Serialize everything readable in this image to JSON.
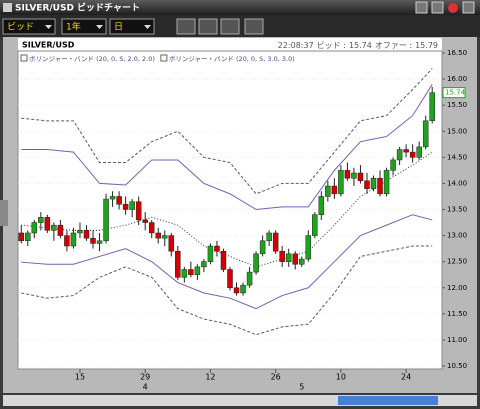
{
  "window": {
    "title": "SILVER/USD ビッドチャート",
    "toolbar": [
      "ビッド",
      "1年",
      "日"
    ]
  },
  "chart_data": {
    "type": "candlestick",
    "symbol": "SILVER/USD",
    "header": {
      "time": "22:08:37",
      "bid_label": "ビッド :",
      "bid": "15.74",
      "offer_label": "オファー :",
      "offer": "15.79"
    },
    "open": [
      13.05,
      12.9,
      13.05,
      13.25,
      13.35,
      13.1,
      13.2,
      13.0,
      12.8,
      13.05,
      13.1,
      12.95,
      12.85,
      12.9,
      13.7,
      13.75,
      13.6,
      13.5,
      13.65,
      13.3,
      13.25,
      13.05,
      12.95,
      13.0,
      12.7,
      12.2,
      12.35,
      12.25,
      12.4,
      12.5,
      12.8,
      12.7,
      12.35,
      12.0,
      11.9,
      12.05,
      12.3,
      12.65,
      12.9,
      13.05,
      12.7,
      12.5,
      12.65,
      12.45,
      12.55,
      13.0,
      13.4,
      13.75,
      13.95,
      13.8,
      14.25,
      14.1,
      14.2,
      14.05,
      13.9,
      14.1,
      13.8,
      14.25,
      14.45,
      14.65,
      14.6,
      14.5,
      14.7,
      15.2
    ],
    "high": [
      13.2,
      13.1,
      13.3,
      13.45,
      13.4,
      13.25,
      13.3,
      13.1,
      13.15,
      13.25,
      13.2,
      13.1,
      13.05,
      13.8,
      13.85,
      13.85,
      13.75,
      13.7,
      13.75,
      13.45,
      13.3,
      13.15,
      13.1,
      13.05,
      12.8,
      12.4,
      12.5,
      12.45,
      12.55,
      12.85,
      12.9,
      12.75,
      12.4,
      12.1,
      12.1,
      12.4,
      12.7,
      13.0,
      13.1,
      13.1,
      12.8,
      12.75,
      12.7,
      12.6,
      13.1,
      13.45,
      13.85,
      14.05,
      14.1,
      14.35,
      14.4,
      14.3,
      14.35,
      14.2,
      14.15,
      14.25,
      14.3,
      14.5,
      14.7,
      14.75,
      14.75,
      14.8,
      15.3,
      15.85
    ],
    "low": [
      12.85,
      12.8,
      12.95,
      13.1,
      13.05,
      12.9,
      12.95,
      12.7,
      12.75,
      12.95,
      12.9,
      12.75,
      12.7,
      12.85,
      13.55,
      13.5,
      13.4,
      13.35,
      13.2,
      13.1,
      12.95,
      12.85,
      12.8,
      12.6,
      12.15,
      12.1,
      12.2,
      12.15,
      12.3,
      12.45,
      12.6,
      12.3,
      11.95,
      11.85,
      11.85,
      12.0,
      12.25,
      12.6,
      12.8,
      12.65,
      12.4,
      12.4,
      12.35,
      12.4,
      12.5,
      12.95,
      13.3,
      13.65,
      13.7,
      13.75,
      14.05,
      13.95,
      14.0,
      13.8,
      13.85,
      13.75,
      13.75,
      14.15,
      14.35,
      14.5,
      14.4,
      14.45,
      14.65,
      15.15
    ],
    "close": [
      12.9,
      13.05,
      13.25,
      13.35,
      13.1,
      13.2,
      13.0,
      12.8,
      13.05,
      13.1,
      12.95,
      12.85,
      12.9,
      13.7,
      13.75,
      13.6,
      13.5,
      13.65,
      13.3,
      13.25,
      13.05,
      12.95,
      13.0,
      12.7,
      12.2,
      12.35,
      12.25,
      12.4,
      12.5,
      12.8,
      12.7,
      12.35,
      12.0,
      11.9,
      12.05,
      12.3,
      12.65,
      12.9,
      13.05,
      12.7,
      12.5,
      12.65,
      12.45,
      12.55,
      13.0,
      13.4,
      13.75,
      13.95,
      13.8,
      14.25,
      14.1,
      14.2,
      14.05,
      13.9,
      14.1,
      13.8,
      14.25,
      14.45,
      14.65,
      14.6,
      14.5,
      14.7,
      15.2,
      15.74
    ],
    "up_color": "#1fa31f",
    "down_color": "#d40000",
    "band_x": [
      0,
      4,
      8,
      12,
      16,
      20,
      24,
      28,
      32,
      36,
      40,
      44,
      48,
      52,
      56,
      60,
      63
    ],
    "middle": {
      "color": "#333333",
      "values": [
        13.2,
        13.15,
        13.1,
        13.1,
        13.2,
        13.35,
        13.2,
        12.8,
        12.6,
        12.4,
        12.55,
        12.7,
        13.2,
        13.75,
        14.05,
        14.35,
        14.6
      ]
    },
    "bands": [
      {
        "name": "ボリンジャー・バンド (20, 0, S, 2.0, 2.0)",
        "color": "#7c5cae",
        "dashed": false,
        "upper": [
          14.65,
          14.65,
          14.6,
          14.0,
          13.97,
          14.45,
          14.45,
          14.0,
          13.8,
          13.5,
          13.55,
          13.55,
          14.25,
          14.8,
          14.9,
          15.3,
          15.9
        ],
        "lower": [
          12.49,
          12.45,
          12.45,
          12.6,
          12.75,
          12.5,
          12.1,
          11.9,
          11.8,
          11.6,
          11.85,
          12.0,
          12.5,
          13.0,
          13.2,
          13.4,
          13.3
        ]
      },
      {
        "name": "ボリンジャー・バンド (20, 0, S, 3.0, 3.0)",
        "color": "#5a5478",
        "dashed": true,
        "upper": [
          15.25,
          15.2,
          15.2,
          14.4,
          14.4,
          14.8,
          15.0,
          14.5,
          14.4,
          13.8,
          14.0,
          14.0,
          14.6,
          15.2,
          15.3,
          15.8,
          16.2
        ],
        "lower": [
          11.9,
          11.8,
          11.85,
          12.2,
          12.4,
          12.2,
          11.6,
          11.4,
          11.3,
          11.1,
          11.25,
          11.3,
          11.9,
          12.6,
          12.7,
          12.8,
          12.8
        ]
      }
    ],
    "xlim": [
      -0.5,
      64.5
    ],
    "xticks": [
      {
        "value": 9,
        "label": "15"
      },
      {
        "value": 19,
        "label": "29"
      },
      {
        "value": 29,
        "label": "12"
      },
      {
        "value": 39,
        "label": "26"
      },
      {
        "value": 49,
        "label": "10"
      },
      {
        "value": 59,
        "label": "24"
      }
    ],
    "month_labels": [
      {
        "value": 19,
        "label": "4"
      },
      {
        "value": 43,
        "label": "5"
      }
    ],
    "ylim": [
      10.5,
      16.5
    ],
    "yticks": [
      {
        "value": 10.5,
        "label": "10.50"
      },
      {
        "value": 11,
        "label": "11.00"
      },
      {
        "value": 11.5,
        "label": "11.50"
      },
      {
        "value": 12,
        "label": "12.00"
      },
      {
        "value": 12.5,
        "label": "12.50"
      },
      {
        "value": 13,
        "label": "13.00"
      },
      {
        "value": 13.5,
        "label": "13.50"
      },
      {
        "value": 14,
        "label": "14.00"
      },
      {
        "value": 14.5,
        "label": "14.50"
      },
      {
        "value": 15,
        "label": "15.00"
      },
      {
        "value": 15.5,
        "label": "15.50"
      },
      {
        "value": 16,
        "label": "16.00"
      },
      {
        "value": 16.5,
        "label": "16.50"
      }
    ],
    "grid": true
  }
}
